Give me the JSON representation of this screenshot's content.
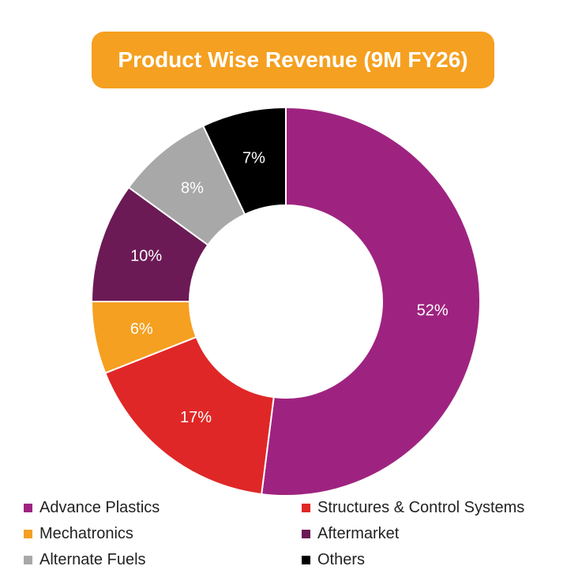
{
  "chart_data": {
    "type": "pie",
    "variant": "donut",
    "title": "Product Wise Revenue (9M FY26)",
    "categories": [
      "Advance Plastics",
      "Structures & Control Systems",
      "Mechatronics",
      "Aftermarket",
      "Alternate Fuels",
      "Others"
    ],
    "values": [
      52,
      17,
      6,
      10,
      8,
      7
    ],
    "labels": [
      "52%",
      "17%",
      "6%",
      "10%",
      "8%",
      "7%"
    ],
    "colors": [
      "#9E2380",
      "#E02727",
      "#F5A020",
      "#6B1A55",
      "#A8A8A8",
      "#000000"
    ],
    "unit": "%",
    "legend_position": "bottom"
  },
  "legend": [
    {
      "label": "Advance Plastics",
      "color": "#9E2380"
    },
    {
      "label": "Structures & Control Systems",
      "color": "#E02727"
    },
    {
      "label": "Mechatronics",
      "color": "#F5A020"
    },
    {
      "label": "Aftermarket",
      "color": "#6B1A55"
    },
    {
      "label": "Alternate Fuels",
      "color": "#A8A8A8"
    },
    {
      "label": "Others",
      "color": "#000000"
    }
  ]
}
